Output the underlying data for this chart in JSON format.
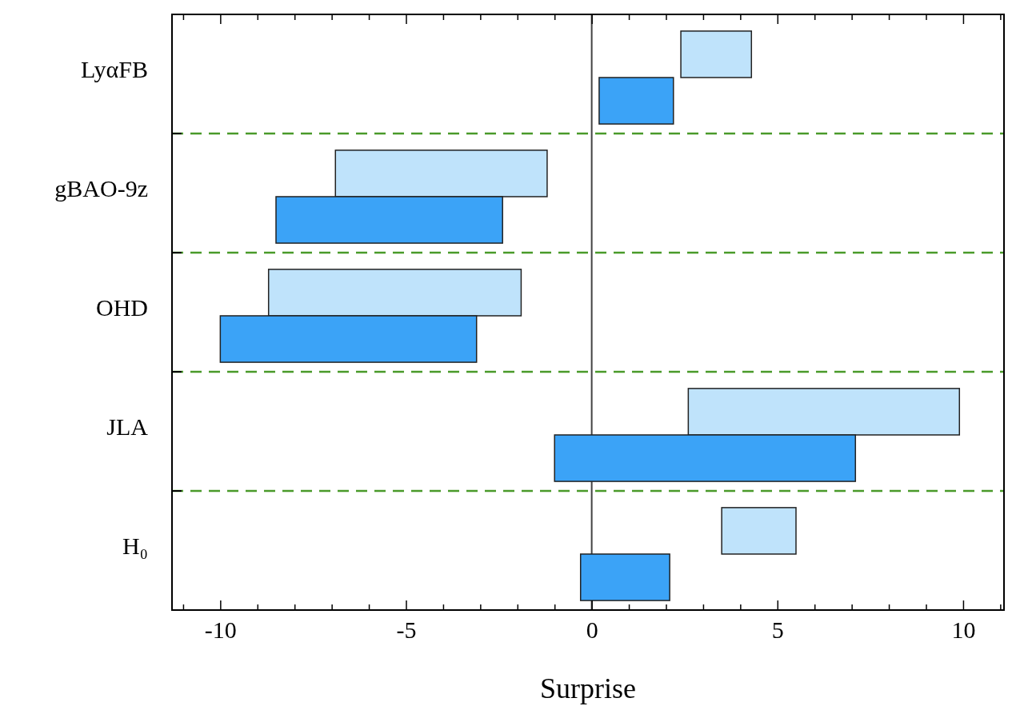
{
  "chart_data": {
    "type": "bar",
    "orientation": "horizontal",
    "xlabel": "Surprise",
    "categories": [
      "LyαFB",
      "gBAO-9z",
      "OHD",
      "JLA",
      "H₀"
    ],
    "series": [
      {
        "color": "#bfe3fb",
        "base": [
          2.4,
          -6.9,
          -8.7,
          2.6,
          3.5
        ],
        "values": [
          1.9,
          5.7,
          6.8,
          7.3,
          2.0
        ]
      },
      {
        "color": "#3ba3f7",
        "base": [
          0.2,
          -8.5,
          -10.0,
          -1.0,
          -0.3
        ],
        "values": [
          2.0,
          6.1,
          6.9,
          8.1,
          2.4
        ]
      }
    ],
    "xlim": [
      -11.3,
      11.1
    ],
    "xticks": [
      {
        "value": -11,
        "label": null
      },
      -10,
      {
        "value": -9,
        "label": null
      },
      {
        "value": -8,
        "label": null
      },
      {
        "value": -7,
        "label": null
      },
      {
        "value": -6,
        "label": null
      },
      -5,
      {
        "value": -4,
        "label": null
      },
      {
        "value": -3,
        "label": null
      },
      {
        "value": -2,
        "label": null
      },
      {
        "value": -1,
        "label": null
      },
      0,
      {
        "value": 1,
        "label": null
      },
      {
        "value": 2,
        "label": null
      },
      {
        "value": 3,
        "label": null
      },
      {
        "value": 4,
        "label": null
      },
      5,
      {
        "value": 6,
        "label": null
      },
      {
        "value": 7,
        "label": null
      },
      {
        "value": 8,
        "label": null
      },
      {
        "value": 9,
        "label": null
      },
      10,
      {
        "value": 11,
        "label": null
      }
    ],
    "ref_lines": [
      {
        "axis": "x",
        "value": 0,
        "color": "#444444",
        "line_style": "solid"
      }
    ],
    "grid": "y"
  }
}
